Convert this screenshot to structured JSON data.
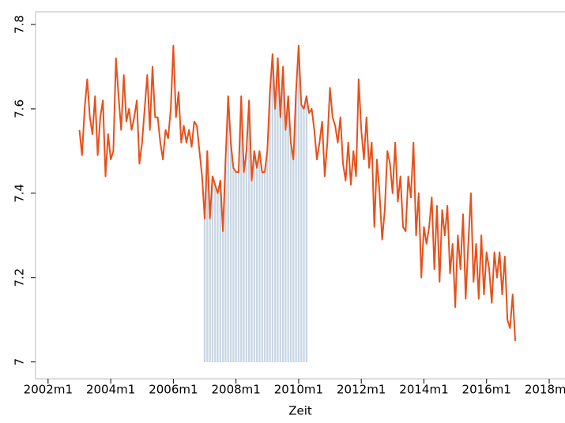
{
  "chart_data": {
    "type": "line",
    "x_label": "Zeit",
    "x": [
      "2003m1",
      "2003m2",
      "2003m3",
      "2003m4",
      "2003m5",
      "2003m6",
      "2003m7",
      "2003m8",
      "2003m9",
      "2003m10",
      "2003m11",
      "2003m12",
      "2004m1",
      "2004m2",
      "2004m3",
      "2004m4",
      "2004m5",
      "2004m6",
      "2004m7",
      "2004m8",
      "2004m9",
      "2004m10",
      "2004m11",
      "2004m12",
      "2005m1",
      "2005m2",
      "2005m3",
      "2005m4",
      "2005m5",
      "2005m6",
      "2005m7",
      "2005m8",
      "2005m9",
      "2005m10",
      "2005m11",
      "2005m12",
      "2006m1",
      "2006m2",
      "2006m3",
      "2006m4",
      "2006m5",
      "2006m6",
      "2006m7",
      "2006m8",
      "2006m9",
      "2006m10",
      "2006m11",
      "2006m12",
      "2007m1",
      "2007m2",
      "2007m3",
      "2007m4",
      "2007m5",
      "2007m6",
      "2007m7",
      "2007m8",
      "2007m9",
      "2007m10",
      "2007m11",
      "2007m12",
      "2008m1",
      "2008m2",
      "2008m3",
      "2008m4",
      "2008m5",
      "2008m6",
      "2008m7",
      "2008m8",
      "2008m9",
      "2008m10",
      "2008m11",
      "2008m12",
      "2009m1",
      "2009m2",
      "2009m3",
      "2009m4",
      "2009m5",
      "2009m6",
      "2009m7",
      "2009m8",
      "2009m9",
      "2009m10",
      "2009m11",
      "2009m12",
      "2010m1",
      "2010m2",
      "2010m3",
      "2010m4",
      "2010m5",
      "2010m6",
      "2010m7",
      "2010m8",
      "2010m9",
      "2010m10",
      "2010m11",
      "2010m12",
      "2011m1",
      "2011m2",
      "2011m3",
      "2011m4",
      "2011m5",
      "2011m6",
      "2011m7",
      "2011m8",
      "2011m9",
      "2011m10",
      "2011m11",
      "2011m12",
      "2012m1",
      "2012m2",
      "2012m3",
      "2012m4",
      "2012m5",
      "2012m6",
      "2012m7",
      "2012m8",
      "2012m9",
      "2012m10",
      "2012m11",
      "2012m12",
      "2013m1",
      "2013m2",
      "2013m3",
      "2013m4",
      "2013m5",
      "2013m6",
      "2013m7",
      "2013m8",
      "2013m9",
      "2013m10",
      "2013m11",
      "2013m12",
      "2014m1",
      "2014m2",
      "2014m3",
      "2014m4",
      "2014m5",
      "2014m6",
      "2014m7",
      "2014m8",
      "2014m9",
      "2014m10",
      "2014m11",
      "2014m12",
      "2015m1",
      "2015m2",
      "2015m3",
      "2015m4",
      "2015m5",
      "2015m6",
      "2015m7",
      "2015m8",
      "2015m9",
      "2015m10",
      "2015m11",
      "2015m12",
      "2016m1",
      "2016m2",
      "2016m3",
      "2016m4",
      "2016m5",
      "2016m6",
      "2016m7",
      "2016m8",
      "2016m9",
      "2016m10",
      "2016m11",
      "2016m12"
    ],
    "series": [
      {
        "color": "#e8501a",
        "values": [
          7.55,
          7.49,
          7.6,
          7.67,
          7.58,
          7.54,
          7.63,
          7.49,
          7.58,
          7.62,
          7.44,
          7.54,
          7.48,
          7.5,
          7.72,
          7.63,
          7.55,
          7.68,
          7.57,
          7.6,
          7.55,
          7.58,
          7.62,
          7.47,
          7.52,
          7.6,
          7.68,
          7.55,
          7.7,
          7.58,
          7.58,
          7.52,
          7.48,
          7.55,
          7.53,
          7.6,
          7.75,
          7.58,
          7.64,
          7.52,
          7.56,
          7.52,
          7.55,
          7.51,
          7.57,
          7.56,
          7.5,
          7.44,
          7.34,
          7.5,
          7.34,
          7.44,
          7.42,
          7.4,
          7.43,
          7.31,
          7.48,
          7.63,
          7.52,
          7.46,
          7.45,
          7.45,
          7.63,
          7.45,
          7.5,
          7.62,
          7.43,
          7.5,
          7.46,
          7.5,
          7.45,
          7.45,
          7.5,
          7.64,
          7.73,
          7.6,
          7.72,
          7.58,
          7.7,
          7.55,
          7.63,
          7.52,
          7.48,
          7.64,
          7.75,
          7.61,
          7.6,
          7.63,
          7.59,
          7.6,
          7.55,
          7.48,
          7.52,
          7.57,
          7.44,
          7.52,
          7.65,
          7.58,
          7.56,
          7.52,
          7.58,
          7.47,
          7.43,
          7.52,
          7.42,
          7.5,
          7.44,
          7.67,
          7.55,
          7.48,
          7.58,
          7.46,
          7.52,
          7.32,
          7.48,
          7.4,
          7.29,
          7.36,
          7.5,
          7.47,
          7.4,
          7.52,
          7.38,
          7.44,
          7.32,
          7.31,
          7.44,
          7.39,
          7.52,
          7.3,
          7.4,
          7.2,
          7.32,
          7.28,
          7.32,
          7.39,
          7.22,
          7.37,
          7.19,
          7.36,
          7.3,
          7.37,
          7.21,
          7.28,
          7.13,
          7.3,
          7.22,
          7.35,
          7.15,
          7.28,
          7.4,
          7.19,
          7.28,
          7.15,
          7.3,
          7.16,
          7.26,
          7.22,
          7.14,
          7.26,
          7.2,
          7.26,
          7.16,
          7.25,
          7.1,
          7.08,
          7.16,
          7.05
        ]
      }
    ],
    "shade": {
      "from": "2007m1",
      "to": "2010m4",
      "color": "#c9d6e3"
    },
    "xlim": [
      2001.6,
      2018.5
    ],
    "xticks": [
      {
        "value": 2002,
        "label": "2002m1"
      },
      {
        "value": 2004,
        "label": "2004m1"
      },
      {
        "value": 2006,
        "label": "2006m1"
      },
      {
        "value": 2008,
        "label": "2008m1"
      },
      {
        "value": 2010,
        "label": "2010m1"
      },
      {
        "value": 2012,
        "label": "2012m1"
      },
      {
        "value": 2014,
        "label": "2014m1"
      },
      {
        "value": 2016,
        "label": "2016m1"
      },
      {
        "value": 2018,
        "label": "2018m1"
      }
    ],
    "ylim": [
      6.96,
      7.83
    ],
    "yticks": [
      7,
      {
        "value": 7.2,
        "label": "7.2"
      },
      {
        "value": 7.4,
        "label": "7.4"
      },
      {
        "value": 7.6,
        "label": "7.6"
      },
      {
        "value": 7.8,
        "label": "7.8"
      }
    ]
  }
}
